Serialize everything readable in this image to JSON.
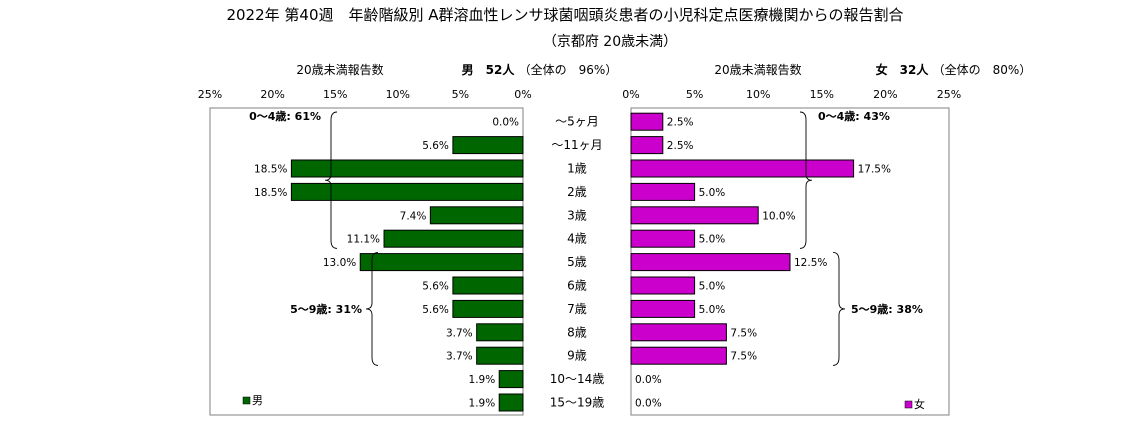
{
  "title": "2022年 第40週　年齢階級別 A群溶血性レンサ球菌咽頭炎患者の小児科定点医療機関からの報告割合",
  "subtitle": "（京都府 20歳未満）",
  "chart_data": [
    {
      "type": "bar",
      "orientation": "horizontal",
      "direction": "right-to-left",
      "side": "male",
      "header_left": "20歳未満報告数",
      "header_sex": "男　52人",
      "header_share": "（全体の　96%）",
      "legend": "男",
      "color": "#006600",
      "xlim": [
        0,
        25
      ],
      "x_ticks": [
        "25%",
        "20%",
        "15%",
        "10%",
        "5%",
        "0%"
      ],
      "categories": [
        "～5ヶ月",
        "～11ヶ月",
        "1歳",
        "2歳",
        "3歳",
        "4歳",
        "5歳",
        "6歳",
        "7歳",
        "8歳",
        "9歳",
        "10～14歳",
        "15～19歳"
      ],
      "values": [
        0.0,
        5.6,
        18.5,
        18.5,
        7.4,
        11.1,
        13.0,
        5.6,
        5.6,
        3.7,
        3.7,
        1.9,
        1.9
      ],
      "data_labels": [
        "0.0%",
        "5.6%",
        "18.5%",
        "18.5%",
        "7.4%",
        "11.1%",
        "13.0%",
        "5.6%",
        "5.6%",
        "3.7%",
        "3.7%",
        "1.9%",
        "1.9%"
      ],
      "groups": [
        {
          "label": "0～4歳: 61%",
          "from": 0,
          "to": 5
        },
        {
          "label": "5～9歳: 31%",
          "from": 6,
          "to": 10
        }
      ]
    },
    {
      "type": "bar",
      "orientation": "horizontal",
      "direction": "left-to-right",
      "side": "female",
      "header_left": "20歳未満報告数",
      "header_sex": "女　32人",
      "header_share": "（全体の　80%）",
      "legend": "女",
      "color": "#CC00CC",
      "xlim": [
        0,
        25
      ],
      "x_ticks": [
        "0%",
        "5%",
        "10%",
        "15%",
        "20%",
        "25%"
      ],
      "categories": [
        "～5ヶ月",
        "～11ヶ月",
        "1歳",
        "2歳",
        "3歳",
        "4歳",
        "5歳",
        "6歳",
        "7歳",
        "8歳",
        "9歳",
        "10～14歳",
        "15～19歳"
      ],
      "values": [
        2.5,
        2.5,
        17.5,
        5.0,
        10.0,
        5.0,
        12.5,
        5.0,
        5.0,
        7.5,
        7.5,
        0.0,
        0.0
      ],
      "data_labels": [
        "2.5%",
        "2.5%",
        "17.5%",
        "5.0%",
        "10.0%",
        "5.0%",
        "12.5%",
        "5.0%",
        "5.0%",
        "7.5%",
        "7.5%",
        "0.0%",
        "0.0%"
      ],
      "groups": [
        {
          "label": "0～4歳: 43%",
          "from": 0,
          "to": 5
        },
        {
          "label": "5～9歳: 38%",
          "from": 6,
          "to": 10
        }
      ]
    }
  ]
}
